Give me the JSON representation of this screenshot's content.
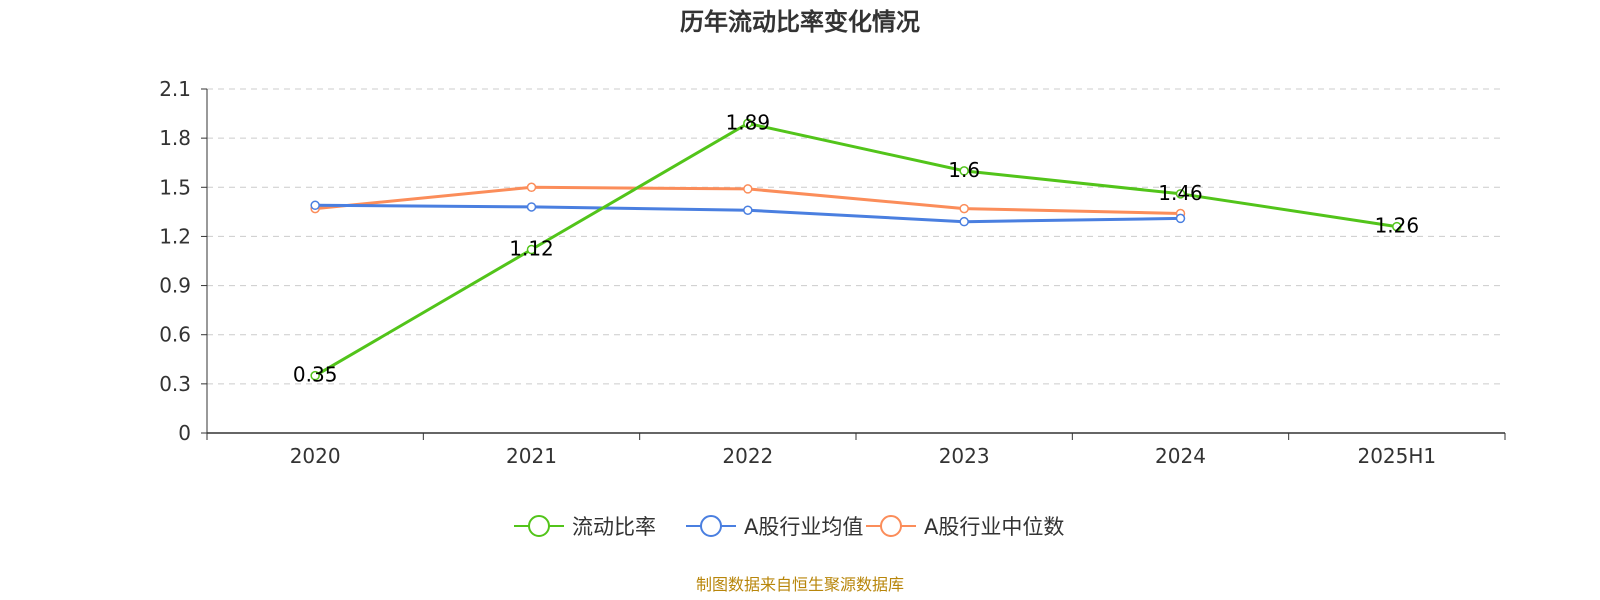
{
  "chart_data": {
    "type": "line",
    "title": "历年流动比率变化情况",
    "categories": [
      "2020",
      "2021",
      "2022",
      "2023",
      "2024",
      "2025H1"
    ],
    "ylim": [
      0,
      2.1
    ],
    "yticks": [
      "0",
      "0.3",
      "0.6",
      "0.9",
      "1.2",
      "1.5",
      "1.8",
      "2.1"
    ],
    "grid": true,
    "legend_position": "bottom",
    "series": [
      {
        "name": "流动比率",
        "color": "#52c41a",
        "show_labels": true,
        "labels": [
          "0.35",
          "1.12",
          "1.89",
          "1.6",
          "1.46",
          "1.26"
        ],
        "values": [
          0.35,
          1.12,
          1.89,
          1.6,
          1.46,
          1.26
        ]
      },
      {
        "name": "A股行业均值",
        "color": "#4a7fe0",
        "show_labels": false,
        "values": [
          1.39,
          1.38,
          1.36,
          1.29,
          1.31,
          null
        ]
      },
      {
        "name": "A股行业中位数",
        "color": "#fb8d5a",
        "show_labels": false,
        "values": [
          1.37,
          1.5,
          1.49,
          1.37,
          1.34,
          null
        ]
      }
    ],
    "source": "制图数据来自恒生聚源数据库"
  }
}
